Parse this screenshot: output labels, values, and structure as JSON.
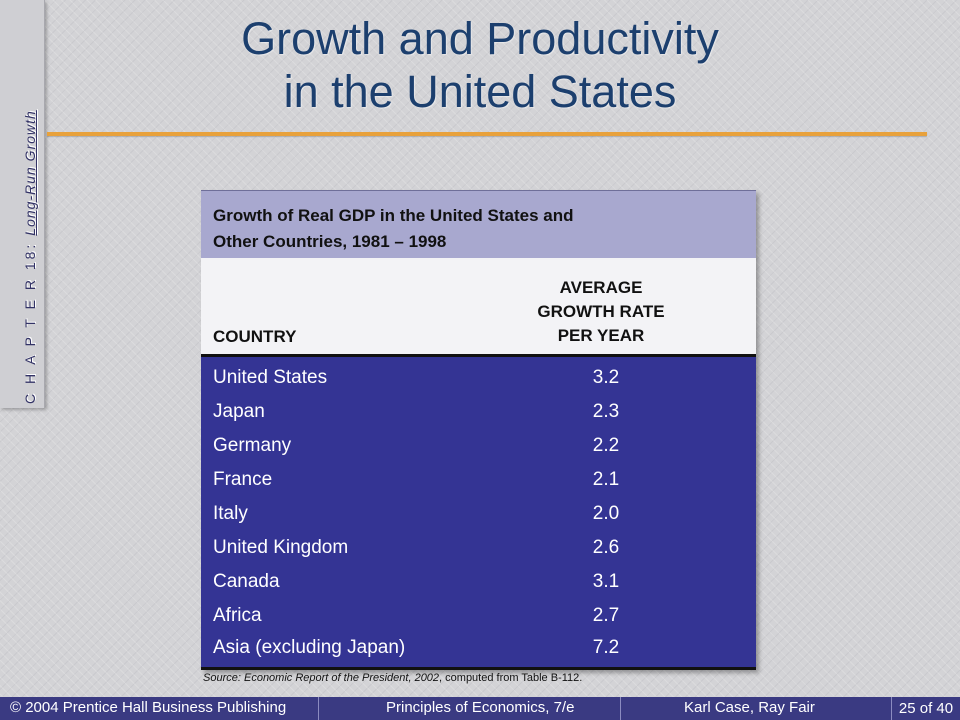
{
  "side": {
    "chapter": "C H A P T E R  18:",
    "topic": "Long-Run Growth"
  },
  "title": {
    "line1": "Growth and Productivity",
    "line2": "in the United States"
  },
  "table": {
    "caption_line1": "Growth of Real GDP in the United States and",
    "caption_line2": "Other Countries, 1981 – 1998",
    "col_country": "COUNTRY",
    "col_rate_line1": "AVERAGE",
    "col_rate_line2": "GROWTH RATE",
    "col_rate_line3": "PER YEAR",
    "rows": [
      {
        "country": "United States",
        "rate": "3.2"
      },
      {
        "country": "Japan",
        "rate": "2.3"
      },
      {
        "country": "Germany",
        "rate": "2.2"
      },
      {
        "country": "France",
        "rate": "2.1"
      },
      {
        "country": "Italy",
        "rate": "2.0"
      },
      {
        "country": "United Kingdom",
        "rate": "2.6"
      },
      {
        "country": "Canada",
        "rate": "3.1"
      },
      {
        "country": "Africa",
        "rate": "2.7"
      },
      {
        "country": "Asia (excluding Japan)",
        "rate": "7.2"
      }
    ]
  },
  "source": {
    "label": "Source:",
    "report": "Economic Report of the President, 2002",
    "rest": ", computed from Table B-112."
  },
  "footer": {
    "copyright": "© 2004 Prentice Hall Business Publishing",
    "book": "Principles of Economics, 7/e",
    "authors": "Karl Case, Ray Fair",
    "page": "25 of 40"
  },
  "colors": {
    "title": "#1c3f6e",
    "rule": "#e8a13b",
    "table_body": "#343494",
    "caption_bg": "#a8a8cf",
    "footer_bg": "#3a3a82"
  }
}
